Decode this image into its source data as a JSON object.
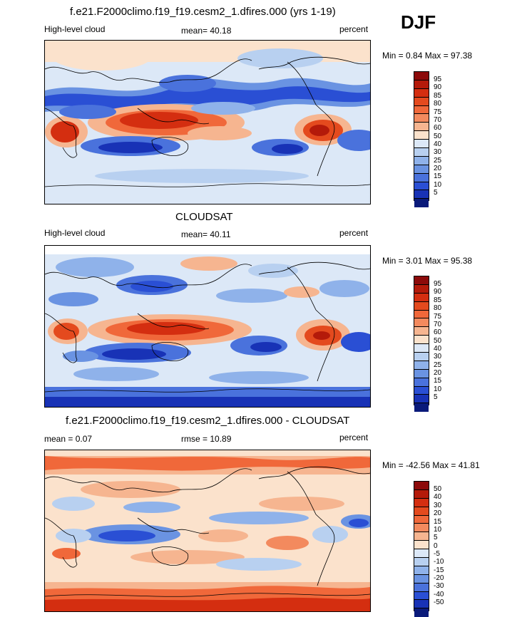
{
  "season": "DJF",
  "panels": [
    {
      "title": "f.e21.F2000climo.f19_f19.cesm2_1.dfires.000 (yrs 1-19)",
      "left_label": "High-level cloud",
      "center_label": "mean=  40.18",
      "right_label": "percent",
      "minmax": "Min =   0.84 Max =  97.38",
      "field": "model-high-cloud",
      "colorbar": {
        "ticks": [
          "95",
          "90",
          "85",
          "80",
          "75",
          "70",
          "60",
          "50",
          "40",
          "30",
          "25",
          "20",
          "15",
          "10",
          "5"
        ],
        "colors": [
          "#8c0a0a",
          "#b41a0a",
          "#d42e10",
          "#e44a1e",
          "#f0683a",
          "#f38a5e",
          "#f6b590",
          "#fbe2cc",
          "#dce8f7",
          "#b8d0f0",
          "#8fb2ea",
          "#6a93e2",
          "#4a72dc",
          "#2a4fd4",
          "#1832b6",
          "#0a1a7a"
        ]
      }
    },
    {
      "title": "CLOUDSAT",
      "left_label": "High-level cloud",
      "center_label": "mean=  40.11",
      "right_label": "percent",
      "minmax": "Min =   3.01 Max =  95.38",
      "field": "obs-high-cloud",
      "colorbar": {
        "ticks": [
          "95",
          "90",
          "85",
          "80",
          "75",
          "70",
          "60",
          "50",
          "40",
          "30",
          "25",
          "20",
          "15",
          "10",
          "5"
        ],
        "colors": [
          "#8c0a0a",
          "#b41a0a",
          "#d42e10",
          "#e44a1e",
          "#f0683a",
          "#f38a5e",
          "#f6b590",
          "#fbe2cc",
          "#dce8f7",
          "#b8d0f0",
          "#8fb2ea",
          "#6a93e2",
          "#4a72dc",
          "#2a4fd4",
          "#1832b6",
          "#0a1a7a"
        ]
      }
    },
    {
      "title": "f.e21.F2000climo.f19_f19.cesm2_1.dfires.000 - CLOUDSAT",
      "left_label": "mean =   0.07",
      "center_label": "rmse =  10.89",
      "right_label": "percent",
      "minmax": "Min = -42.56 Max =  41.81",
      "field": "difference",
      "colorbar": {
        "ticks": [
          "50",
          "40",
          "30",
          "20",
          "15",
          "10",
          "5",
          "0",
          "-5",
          "-10",
          "-15",
          "-20",
          "-30",
          "-40",
          "-50"
        ],
        "colors": [
          "#8c0a0a",
          "#b41a0a",
          "#d42e10",
          "#e44a1e",
          "#f0683a",
          "#f38a5e",
          "#f6b590",
          "#fbe2cc",
          "#dce8f7",
          "#b8d0f0",
          "#8fb2ea",
          "#6a93e2",
          "#4a72dc",
          "#2a4fd4",
          "#1832b6",
          "#0a1a7a"
        ]
      }
    }
  ]
}
